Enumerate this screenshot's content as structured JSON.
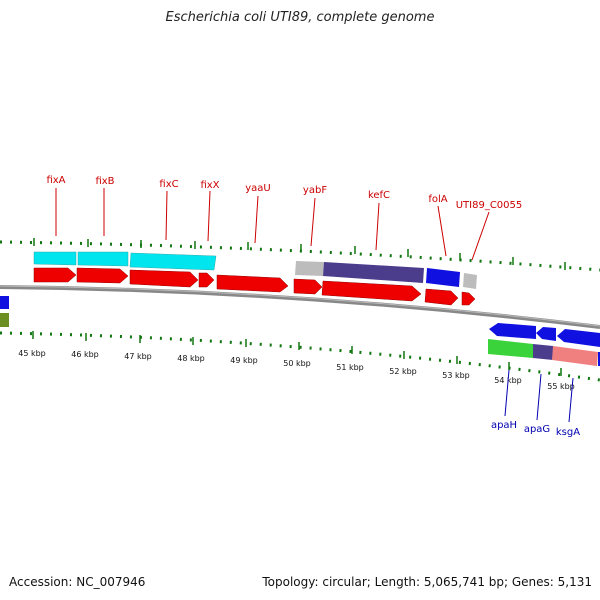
{
  "title": "Escherichia coli UTI89, complete genome",
  "footer": {
    "accession": "Accession: NC_007946",
    "stats": "Topology: circular; Length: 5,065,741 bp; Genes: 5,131"
  },
  "colors": {
    "forward_cds": "#ee0000",
    "cyan": "#00e5ee",
    "navy": "#4b3c8c",
    "blue": "#1010e0",
    "grey": "#bcbcbc",
    "green": "#3bd33b",
    "pink": "#f08080",
    "olive": "#6b8e23",
    "label_forward": "#cc0000",
    "label_reverse": "#0000b0",
    "backbone": "#888888",
    "tick": "#117711"
  },
  "ruler": [
    "45 kbp",
    "46 kbp",
    "47 kbp",
    "48 kbp",
    "49 kbp",
    "50 kbp",
    "51 kbp",
    "52 kbp",
    "53 kbp",
    "54 kbp",
    "55 kbp"
  ],
  "forward_labels": [
    "fixA",
    "fixB",
    "fixC",
    "fixX",
    "yaaU",
    "yabF",
    "kefC",
    "folA",
    "UTI89_C0055"
  ],
  "reverse_labels": [
    "apaH",
    "apaG",
    "ksgA"
  ]
}
